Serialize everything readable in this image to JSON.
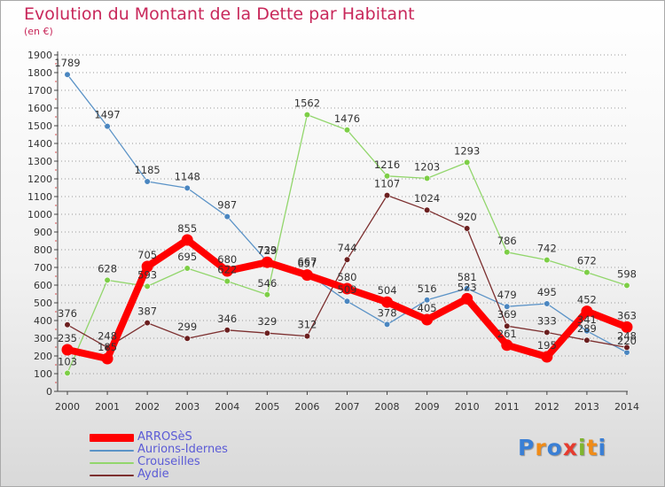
{
  "title": "Evolution du Montant de la Dette par Habitant",
  "subtitle": "(en €)",
  "logo": {
    "letters": [
      "P",
      "r",
      "o",
      "x",
      "i",
      "t",
      "i"
    ],
    "colors": [
      "#3a7fd5",
      "#f08c18",
      "#3a7fd5",
      "#e63b2e",
      "#7fb52e",
      "#f08c18",
      "#3a7fd5"
    ]
  },
  "chart_data": {
    "type": "line",
    "title": "Evolution du Montant de la Dette par Habitant",
    "ylabel": "(en €)",
    "ylim": [
      0,
      1900
    ],
    "yticks": [
      0,
      100,
      200,
      300,
      400,
      500,
      600,
      700,
      800,
      900,
      1000,
      1100,
      1200,
      1300,
      1400,
      1500,
      1600,
      1700,
      1800,
      1900
    ],
    "x": [
      "2000",
      "2001",
      "2002",
      "2003",
      "2004",
      "2005",
      "2006",
      "2007",
      "2008",
      "2009",
      "2010",
      "2011",
      "2012",
      "2013",
      "2014"
    ],
    "grid": "horizontal-dotted",
    "legend_position": "bottom-left",
    "series": [
      {
        "name": "Aurions-Idernes",
        "color": "#5b93c7",
        "marker": "#4a86c0",
        "values": [
          1789,
          1497,
          1185,
          1148,
          987,
          733,
          667,
          509,
          378,
          516,
          581,
          479,
          495,
          341,
          220
        ]
      },
      {
        "name": "Crouseilles",
        "color": "#92d66c",
        "marker": "#7dce46",
        "values": [
          103,
          628,
          593,
          695,
          622,
          546,
          1562,
          1476,
          1216,
          1203,
          1293,
          786,
          742,
          672,
          598
        ]
      },
      {
        "name": "Aydie",
        "color": "#7c2f2f",
        "marker": "#6b1f1f",
        "values": [
          376,
          248,
          387,
          299,
          346,
          329,
          312,
          744,
          1107,
          1024,
          920,
          369,
          333,
          289,
          248
        ]
      },
      {
        "name": "ARROSèS",
        "color": "#ff0000",
        "marker": "#ff0000",
        "values": [
          235,
          185,
          705,
          855,
          680,
          729,
          657,
          580,
          504,
          405,
          523,
          261,
          195,
          452,
          363
        ]
      }
    ]
  }
}
